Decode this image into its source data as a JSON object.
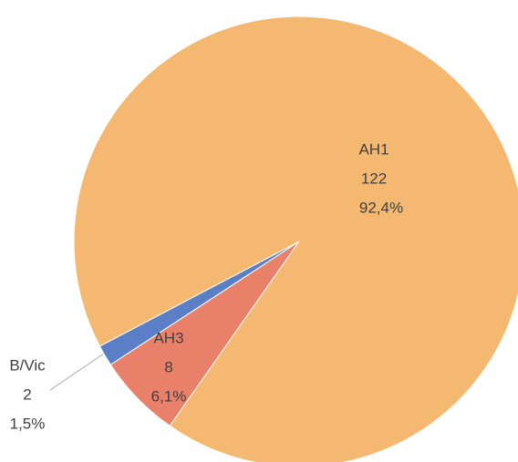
{
  "chart_data": {
    "type": "pie",
    "categories": [
      "AH3",
      "B/Vic",
      "AH1"
    ],
    "values": [
      8,
      2,
      122
    ],
    "percent_labels": [
      "6,1%",
      "1,5%",
      "92,4%"
    ],
    "colors": [
      "#e8806a",
      "#5b7fc6",
      "#f5b870"
    ]
  }
}
